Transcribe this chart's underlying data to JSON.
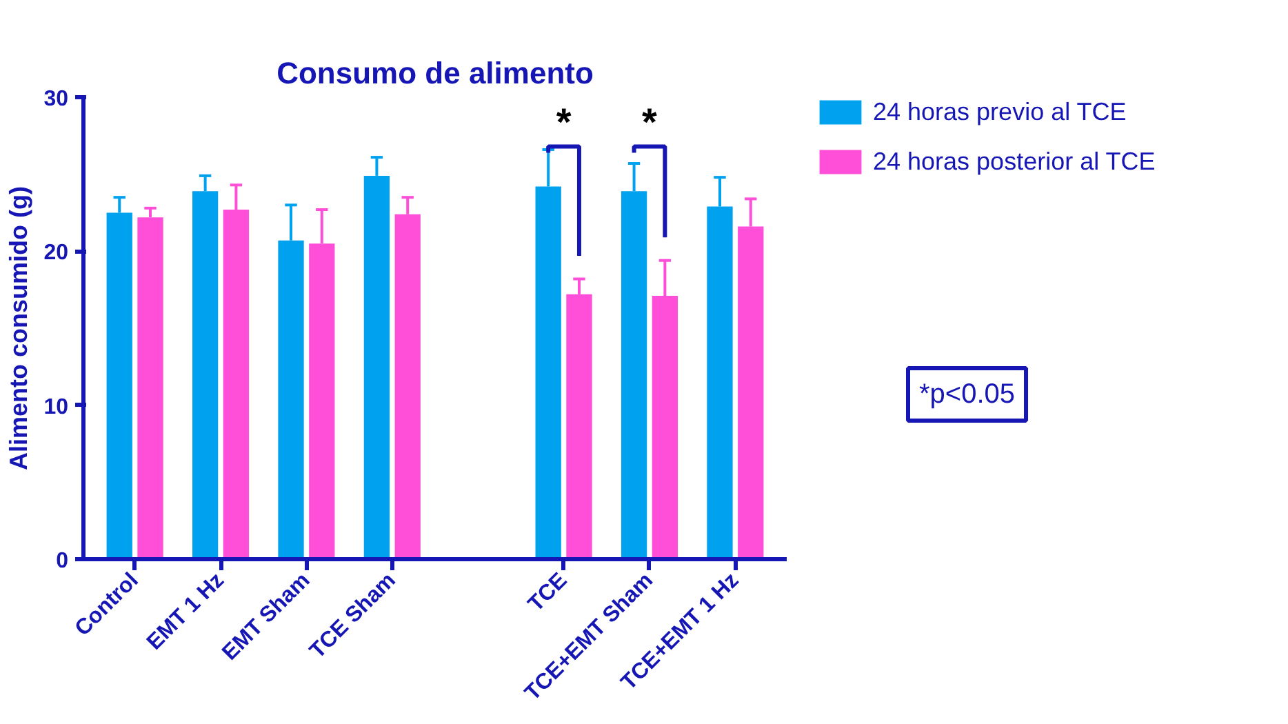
{
  "chart_data": {
    "type": "bar",
    "title": "Consumo de alimento",
    "ylabel": "Alimento consumido (g)",
    "categories": [
      "Control",
      "EMT 1 Hz",
      "EMT Sham",
      "TCE Sham",
      null,
      "TCE",
      "TCE+EMT Sham",
      "TCE+EMT 1 Hz"
    ],
    "series": [
      {
        "name": "24 horas previo al TCE",
        "color": "#00a2f0",
        "values": [
          22.5,
          23.9,
          20.7,
          24.9,
          null,
          24.2,
          23.9,
          22.9
        ],
        "errors": [
          [
            22.5,
            23.5
          ],
          [
            23.9,
            24.9
          ],
          [
            20.7,
            23.0
          ],
          [
            24.9,
            26.1
          ],
          null,
          [
            24.2,
            26.6
          ],
          [
            23.9,
            25.7
          ],
          [
            22.9,
            24.8
          ]
        ]
      },
      {
        "name": "24 horas posterior al TCE",
        "color": "#ff4fd8",
        "values": [
          22.2,
          22.7,
          20.5,
          22.4,
          null,
          17.2,
          17.1,
          21.6
        ],
        "errors": [
          [
            22.2,
            22.8
          ],
          [
            22.7,
            24.3
          ],
          [
            20.5,
            22.7
          ],
          [
            22.4,
            23.5
          ],
          null,
          [
            17.2,
            18.2
          ],
          [
            17.1,
            19.4
          ],
          [
            21.6,
            23.4
          ]
        ]
      }
    ],
    "ylim": [
      0,
      30
    ],
    "yticks": [
      0,
      10,
      20,
      30
    ],
    "grid": false,
    "legend": "top right",
    "annotations": [
      "*",
      "*",
      "*p<0.05"
    ]
  }
}
